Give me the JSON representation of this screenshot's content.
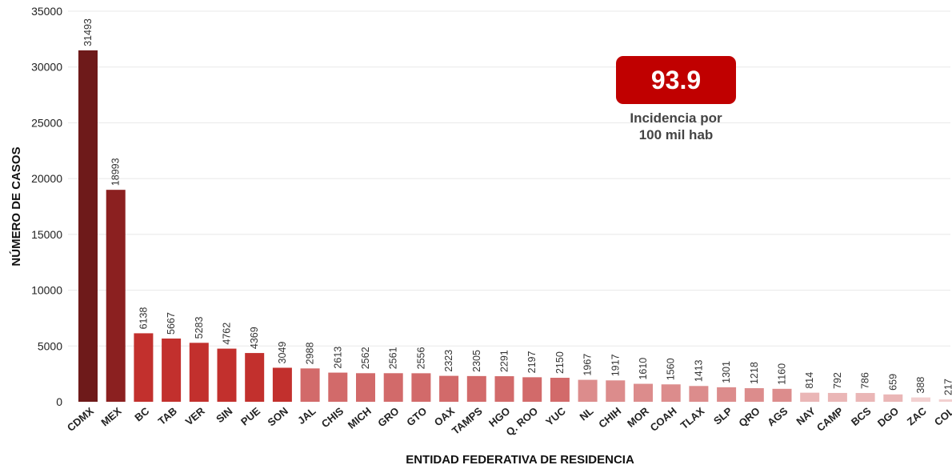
{
  "chart_data": {
    "type": "bar",
    "xlabel": "ENTIDAD FEDERATIVA DE RESIDENCIA",
    "ylabel": "NÚMERO DE CASOS",
    "ylim": [
      0,
      35000
    ],
    "yticks": [
      0,
      5000,
      10000,
      15000,
      20000,
      25000,
      30000,
      35000
    ],
    "grid": true,
    "categories": [
      "CDMX",
      "MEX",
      "BC",
      "TAB",
      "VER",
      "SIN",
      "PUE",
      "SON",
      "JAL",
      "CHIS",
      "MICH",
      "GRO",
      "GTO",
      "OAX",
      "TAMPS",
      "HGO",
      "Q. ROO",
      "YUC",
      "NL",
      "CHIH",
      "MOR",
      "COAH",
      "TLAX",
      "SLP",
      "QRO",
      "AGS",
      "NAY",
      "CAMP",
      "BCS",
      "DGO",
      "ZAC",
      "COL"
    ],
    "values": [
      31493,
      18993,
      6138,
      5667,
      5283,
      4762,
      4369,
      3049,
      2988,
      2613,
      2562,
      2561,
      2556,
      2323,
      2305,
      2291,
      2197,
      2150,
      1967,
      1917,
      1610,
      1560,
      1413,
      1301,
      1218,
      1160,
      814,
      792,
      786,
      659,
      388,
      217
    ],
    "bar_colors": [
      "#6e1a1a",
      "#8b2020",
      "#c2302d",
      "#c2302d",
      "#c2302d",
      "#c2302d",
      "#c2302d",
      "#c2302d",
      "#d26a6a",
      "#d26a6a",
      "#d26a6a",
      "#d26a6a",
      "#d26a6a",
      "#d26a6a",
      "#d26a6a",
      "#d26a6a",
      "#d26a6a",
      "#d26a6a",
      "#dc8c8c",
      "#dc8c8c",
      "#dc8c8c",
      "#dc8c8c",
      "#dc8c8c",
      "#dc8c8c",
      "#dc8c8c",
      "#dc8c8c",
      "#eab6b6",
      "#eab6b6",
      "#eab6b6",
      "#eab6b6",
      "#f2d0d0",
      "#f2d0d0"
    ]
  },
  "annotation": {
    "value": "93.9",
    "caption_line1": "Incidencia por",
    "caption_line2": "100 mil hab",
    "box_color": "#c00000"
  }
}
